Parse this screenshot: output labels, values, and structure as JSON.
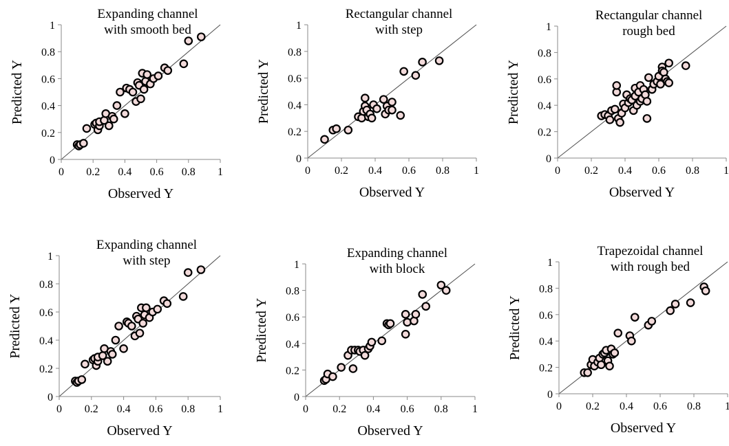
{
  "chart_data": [
    {
      "type": "scatter",
      "title_lines": [
        "Expanding channel",
        "with smooth bed"
      ],
      "xlabel": "Observed Y",
      "ylabel": "Predicted Y",
      "xlim": [
        0,
        1
      ],
      "ylim": [
        0,
        1
      ],
      "xticks": [
        "0",
        "0.2",
        "0.4",
        "0.6",
        "0.8",
        "1"
      ],
      "yticks": [
        "0",
        "0.2",
        "0.4",
        "0.6",
        "0.8",
        "1"
      ],
      "reference_line": "y = x",
      "grid": false,
      "marker_color": "#f2dada",
      "points": [
        [
          0.1,
          0.11
        ],
        [
          0.11,
          0.1
        ],
        [
          0.12,
          0.11
        ],
        [
          0.14,
          0.12
        ],
        [
          0.16,
          0.23
        ],
        [
          0.21,
          0.26
        ],
        [
          0.22,
          0.27
        ],
        [
          0.23,
          0.22
        ],
        [
          0.24,
          0.25
        ],
        [
          0.24,
          0.28
        ],
        [
          0.27,
          0.29
        ],
        [
          0.28,
          0.34
        ],
        [
          0.3,
          0.25
        ],
        [
          0.32,
          0.32
        ],
        [
          0.33,
          0.3
        ],
        [
          0.35,
          0.4
        ],
        [
          0.37,
          0.5
        ],
        [
          0.4,
          0.34
        ],
        [
          0.41,
          0.53
        ],
        [
          0.43,
          0.52
        ],
        [
          0.45,
          0.5
        ],
        [
          0.47,
          0.43
        ],
        [
          0.48,
          0.57
        ],
        [
          0.49,
          0.55
        ],
        [
          0.5,
          0.45
        ],
        [
          0.51,
          0.64
        ],
        [
          0.52,
          0.52
        ],
        [
          0.53,
          0.58
        ],
        [
          0.54,
          0.63
        ],
        [
          0.56,
          0.56
        ],
        [
          0.58,
          0.6
        ],
        [
          0.61,
          0.62
        ],
        [
          0.65,
          0.68
        ],
        [
          0.67,
          0.66
        ],
        [
          0.77,
          0.71
        ],
        [
          0.8,
          0.88
        ],
        [
          0.88,
          0.91
        ]
      ]
    },
    {
      "type": "scatter",
      "title_lines": [
        "Rectangular channel",
        "with step"
      ],
      "xlabel": "Observed Y",
      "ylabel": "Predicted Y",
      "xlim": [
        0,
        1
      ],
      "ylim": [
        0,
        1
      ],
      "xticks": [
        "0",
        "0.2",
        "0.4",
        "0.6",
        "0.8",
        "1"
      ],
      "yticks": [
        "0",
        "0.2",
        "0.4",
        "0.6",
        "0.8",
        "1"
      ],
      "reference_line": "y = x",
      "grid": false,
      "marker_color": "#f2dada",
      "points": [
        [
          0.1,
          0.14
        ],
        [
          0.15,
          0.21
        ],
        [
          0.17,
          0.22
        ],
        [
          0.24,
          0.21
        ],
        [
          0.3,
          0.31
        ],
        [
          0.32,
          0.3
        ],
        [
          0.33,
          0.35
        ],
        [
          0.34,
          0.39
        ],
        [
          0.34,
          0.45
        ],
        [
          0.35,
          0.36
        ],
        [
          0.36,
          0.31
        ],
        [
          0.37,
          0.33
        ],
        [
          0.38,
          0.3
        ],
        [
          0.39,
          0.4
        ],
        [
          0.41,
          0.37
        ],
        [
          0.45,
          0.44
        ],
        [
          0.46,
          0.33
        ],
        [
          0.47,
          0.39
        ],
        [
          0.48,
          0.36
        ],
        [
          0.5,
          0.42
        ],
        [
          0.5,
          0.36
        ],
        [
          0.55,
          0.32
        ],
        [
          0.57,
          0.65
        ],
        [
          0.64,
          0.62
        ],
        [
          0.68,
          0.72
        ],
        [
          0.78,
          0.73
        ]
      ]
    },
    {
      "type": "scatter",
      "title_lines": [
        "Rectangular channel",
        "rough bed"
      ],
      "xlabel": "Observed Y",
      "ylabel": "Predicted Y",
      "xlim": [
        0,
        1
      ],
      "ylim": [
        0,
        1
      ],
      "xticks": [
        "0",
        "0.2",
        "0.4",
        "0.6",
        "0.8",
        "1"
      ],
      "yticks": [
        "0",
        "0.2",
        "0.4",
        "0.6",
        "0.8",
        "1"
      ],
      "reference_line": "y = x",
      "grid": false,
      "marker_color": "#f2dada",
      "points": [
        [
          0.26,
          0.32
        ],
        [
          0.28,
          0.33
        ],
        [
          0.3,
          0.32
        ],
        [
          0.31,
          0.29
        ],
        [
          0.32,
          0.36
        ],
        [
          0.34,
          0.37
        ],
        [
          0.35,
          0.5
        ],
        [
          0.35,
          0.55
        ],
        [
          0.36,
          0.3
        ],
        [
          0.37,
          0.27
        ],
        [
          0.38,
          0.34
        ],
        [
          0.39,
          0.41
        ],
        [
          0.4,
          0.38
        ],
        [
          0.41,
          0.48
        ],
        [
          0.42,
          0.42
        ],
        [
          0.43,
          0.45
        ],
        [
          0.44,
          0.44
        ],
        [
          0.45,
          0.36
        ],
        [
          0.46,
          0.47
        ],
        [
          0.46,
          0.53
        ],
        [
          0.47,
          0.4
        ],
        [
          0.48,
          0.5
        ],
        [
          0.49,
          0.43
        ],
        [
          0.49,
          0.55
        ],
        [
          0.5,
          0.45
        ],
        [
          0.51,
          0.52
        ],
        [
          0.52,
          0.48
        ],
        [
          0.53,
          0.3
        ],
        [
          0.53,
          0.43
        ],
        [
          0.54,
          0.61
        ],
        [
          0.56,
          0.52
        ],
        [
          0.57,
          0.56
        ],
        [
          0.59,
          0.58
        ],
        [
          0.6,
          0.62
        ],
        [
          0.61,
          0.56
        ],
        [
          0.62,
          0.69
        ],
        [
          0.62,
          0.66
        ],
        [
          0.63,
          0.65
        ],
        [
          0.64,
          0.6
        ],
        [
          0.65,
          0.58
        ],
        [
          0.66,
          0.72
        ],
        [
          0.66,
          0.57
        ],
        [
          0.76,
          0.7
        ]
      ]
    },
    {
      "type": "scatter",
      "title_lines": [
        "Expanding channel",
        "with step"
      ],
      "xlabel": "Observed Y",
      "ylabel": "Predicted Y",
      "xlim": [
        0,
        1
      ],
      "ylim": [
        0,
        1
      ],
      "xticks": [
        "0",
        "0.2",
        "0.4",
        "0.6",
        "0.8",
        "1"
      ],
      "yticks": [
        "0",
        "0.2",
        "0.4",
        "0.6",
        "0.8",
        "1"
      ],
      "reference_line": "y = x",
      "grid": false,
      "marker_color": "#f2dada",
      "points": [
        [
          0.1,
          0.11
        ],
        [
          0.11,
          0.1
        ],
        [
          0.12,
          0.11
        ],
        [
          0.14,
          0.12
        ],
        [
          0.16,
          0.23
        ],
        [
          0.21,
          0.26
        ],
        [
          0.22,
          0.27
        ],
        [
          0.23,
          0.22
        ],
        [
          0.24,
          0.25
        ],
        [
          0.24,
          0.28
        ],
        [
          0.27,
          0.29
        ],
        [
          0.28,
          0.34
        ],
        [
          0.3,
          0.25
        ],
        [
          0.32,
          0.32
        ],
        [
          0.33,
          0.3
        ],
        [
          0.35,
          0.4
        ],
        [
          0.37,
          0.5
        ],
        [
          0.4,
          0.34
        ],
        [
          0.42,
          0.53
        ],
        [
          0.43,
          0.52
        ],
        [
          0.45,
          0.5
        ],
        [
          0.47,
          0.43
        ],
        [
          0.48,
          0.57
        ],
        [
          0.49,
          0.55
        ],
        [
          0.5,
          0.45
        ],
        [
          0.51,
          0.63
        ],
        [
          0.52,
          0.52
        ],
        [
          0.53,
          0.58
        ],
        [
          0.54,
          0.63
        ],
        [
          0.56,
          0.56
        ],
        [
          0.58,
          0.6
        ],
        [
          0.61,
          0.62
        ],
        [
          0.65,
          0.68
        ],
        [
          0.67,
          0.66
        ],
        [
          0.77,
          0.71
        ],
        [
          0.8,
          0.88
        ],
        [
          0.88,
          0.9
        ]
      ]
    },
    {
      "type": "scatter",
      "title_lines": [
        "Expanding channel",
        "with block"
      ],
      "xlabel": "Observed Y",
      "ylabel": "Predicted Y",
      "xlim": [
        0,
        1
      ],
      "ylim": [
        0,
        1
      ],
      "xticks": [
        "0",
        "0.2",
        "0.4",
        "0.6",
        "0.8",
        "1"
      ],
      "yticks": [
        "0",
        "0.2",
        "0.4",
        "0.6",
        "0.8",
        "1"
      ],
      "reference_line": "y = x",
      "grid": false,
      "marker_color": "#f2dada",
      "points": [
        [
          0.11,
          0.12
        ],
        [
          0.12,
          0.13
        ],
        [
          0.13,
          0.17
        ],
        [
          0.16,
          0.15
        ],
        [
          0.21,
          0.22
        ],
        [
          0.25,
          0.31
        ],
        [
          0.27,
          0.35
        ],
        [
          0.28,
          0.21
        ],
        [
          0.29,
          0.35
        ],
        [
          0.31,
          0.35
        ],
        [
          0.32,
          0.34
        ],
        [
          0.34,
          0.35
        ],
        [
          0.35,
          0.31
        ],
        [
          0.37,
          0.36
        ],
        [
          0.38,
          0.38
        ],
        [
          0.39,
          0.41
        ],
        [
          0.45,
          0.42
        ],
        [
          0.48,
          0.55
        ],
        [
          0.49,
          0.54
        ],
        [
          0.5,
          0.55
        ],
        [
          0.59,
          0.62
        ],
        [
          0.59,
          0.47
        ],
        [
          0.6,
          0.56
        ],
        [
          0.64,
          0.57
        ],
        [
          0.65,
          0.62
        ],
        [
          0.69,
          0.77
        ],
        [
          0.71,
          0.68
        ],
        [
          0.8,
          0.84
        ],
        [
          0.83,
          0.8
        ]
      ]
    },
    {
      "type": "scatter",
      "title_lines": [
        "Trapezoidal channel",
        "with rough bed"
      ],
      "xlabel": "Observed Y",
      "ylabel": "Predicted Y",
      "xlim": [
        0,
        1
      ],
      "ylim": [
        0,
        1
      ],
      "xticks": [
        "0",
        "0.2",
        "0.4",
        "0.6",
        "0.8",
        "1"
      ],
      "yticks": [
        "0",
        "0.2",
        "0.4",
        "0.6",
        "0.8",
        "1"
      ],
      "reference_line": "y = x",
      "grid": false,
      "marker_color": "#f2dada",
      "points": [
        [
          0.15,
          0.16
        ],
        [
          0.17,
          0.16
        ],
        [
          0.19,
          0.22
        ],
        [
          0.2,
          0.26
        ],
        [
          0.21,
          0.21
        ],
        [
          0.23,
          0.24
        ],
        [
          0.24,
          0.27
        ],
        [
          0.25,
          0.22
        ],
        [
          0.26,
          0.3
        ],
        [
          0.27,
          0.31
        ],
        [
          0.28,
          0.33
        ],
        [
          0.29,
          0.25
        ],
        [
          0.3,
          0.21
        ],
        [
          0.31,
          0.34
        ],
        [
          0.32,
          0.3
        ],
        [
          0.33,
          0.31
        ],
        [
          0.35,
          0.46
        ],
        [
          0.42,
          0.44
        ],
        [
          0.43,
          0.4
        ],
        [
          0.45,
          0.58
        ],
        [
          0.53,
          0.52
        ],
        [
          0.55,
          0.55
        ],
        [
          0.66,
          0.63
        ],
        [
          0.69,
          0.68
        ],
        [
          0.78,
          0.69
        ],
        [
          0.86,
          0.81
        ],
        [
          0.87,
          0.78
        ]
      ]
    }
  ]
}
